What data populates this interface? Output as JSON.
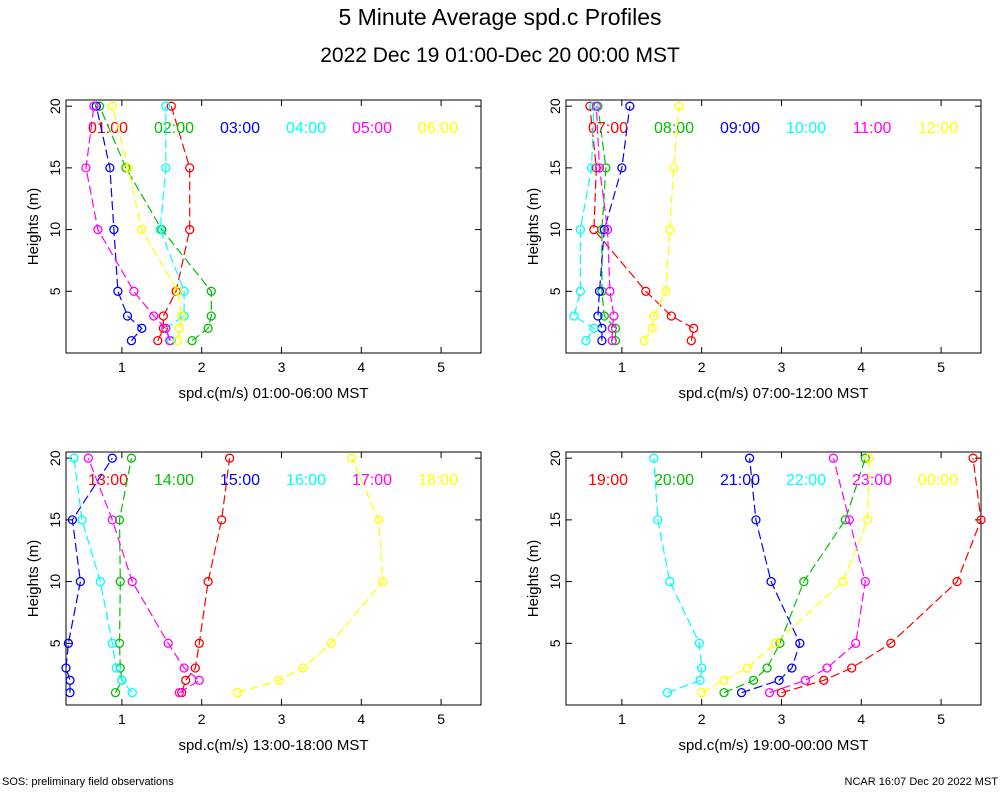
{
  "title": "5 Minute Average spd.c Profiles",
  "subtitle": "2022 Dec 19 01:00-Dec 20 00:00 MST",
  "footer_left": "SOS: preliminary field observations",
  "footer_right": "NCAR 16:07 Dec 20 2022 MST",
  "chart_data": [
    {
      "type": "line",
      "xlabel": "spd.c(m/s) 01:00-06:00 MST",
      "ylabel": "Heights (m)",
      "xlim": [
        0.3,
        5.5
      ],
      "ylim": [
        0,
        20.5
      ],
      "xticks": [
        1,
        2,
        3,
        4,
        5
      ],
      "yticks": [
        5,
        10,
        15,
        20
      ],
      "heights": [
        1,
        2,
        3,
        5,
        10,
        15,
        20
      ],
      "series": [
        {
          "name": "01:00",
          "color": "#ff0000",
          "values": [
            1.45,
            1.52,
            1.52,
            1.68,
            1.85,
            1.85,
            1.62
          ]
        },
        {
          "name": "02:00",
          "color": "#00c000",
          "values": [
            1.88,
            2.08,
            2.12,
            2.12,
            1.5,
            1.05,
            0.72
          ]
        },
        {
          "name": "03:00",
          "color": "#0000ff",
          "values": [
            1.12,
            1.25,
            1.07,
            0.95,
            0.9,
            0.85,
            0.68
          ]
        },
        {
          "name": "04:00",
          "color": "#00ffff",
          "values": [
            1.62,
            1.55,
            1.78,
            1.78,
            1.48,
            1.55,
            1.55
          ]
        },
        {
          "name": "05:00",
          "color": "#ff00ff",
          "values": [
            1.6,
            1.55,
            1.4,
            1.15,
            0.7,
            0.55,
            0.65
          ]
        },
        {
          "name": "06:00",
          "color": "#ffff00",
          "values": [
            1.7,
            1.72,
            1.75,
            1.7,
            1.25,
            1.08,
            0.88
          ]
        }
      ]
    },
    {
      "type": "line",
      "xlabel": "spd.c(m/s) 07:00-12:00 MST",
      "ylabel": "Heights (m)",
      "xlim": [
        0.3,
        5.5
      ],
      "ylim": [
        0,
        20.5
      ],
      "xticks": [
        1,
        2,
        3,
        4,
        5
      ],
      "yticks": [
        5,
        10,
        15,
        20
      ],
      "heights": [
        1,
        2,
        3,
        5,
        10,
        15,
        20
      ],
      "series": [
        {
          "name": "07:00",
          "color": "#ff0000",
          "values": [
            1.87,
            1.9,
            1.62,
            1.3,
            0.65,
            0.68,
            0.6
          ]
        },
        {
          "name": "08:00",
          "color": "#00c000",
          "values": [
            0.92,
            0.92,
            0.78,
            0.75,
            0.75,
            0.8,
            0.7
          ]
        },
        {
          "name": "09:00",
          "color": "#0000ff",
          "values": [
            0.75,
            0.75,
            0.7,
            0.72,
            0.78,
            1.0,
            1.1
          ]
        },
        {
          "name": "10:00",
          "color": "#00ffff",
          "values": [
            0.55,
            0.65,
            0.4,
            0.48,
            0.48,
            0.62,
            0.65
          ]
        },
        {
          "name": "11:00",
          "color": "#ff00ff",
          "values": [
            0.88,
            0.88,
            0.9,
            0.85,
            0.82,
            0.72,
            0.68
          ]
        },
        {
          "name": "12:00",
          "color": "#ffff00",
          "values": [
            1.28,
            1.38,
            1.4,
            1.55,
            1.6,
            1.65,
            1.72
          ]
        }
      ]
    },
    {
      "type": "line",
      "xlabel": "spd.c(m/s) 13:00-18:00 MST",
      "ylabel": "Heights (m)",
      "xlim": [
        0.3,
        5.5
      ],
      "ylim": [
        0,
        20.5
      ],
      "xticks": [
        1,
        2,
        3,
        4,
        5
      ],
      "yticks": [
        5,
        10,
        15,
        20
      ],
      "heights": [
        1,
        2,
        3,
        5,
        10,
        15,
        20
      ],
      "series": [
        {
          "name": "13:00",
          "color": "#ff0000",
          "values": [
            1.75,
            1.8,
            1.92,
            1.97,
            2.08,
            2.25,
            2.35
          ]
        },
        {
          "name": "14:00",
          "color": "#00c000",
          "values": [
            0.92,
            1.0,
            0.98,
            0.97,
            0.98,
            0.97,
            1.12
          ]
        },
        {
          "name": "15:00",
          "color": "#0000ff",
          "values": [
            0.35,
            0.35,
            0.3,
            0.33,
            0.48,
            0.38,
            0.88
          ]
        },
        {
          "name": "16:00",
          "color": "#00ffff",
          "values": [
            1.13,
            1.0,
            0.93,
            0.88,
            0.73,
            0.5,
            0.4
          ]
        },
        {
          "name": "17:00",
          "color": "#ff00ff",
          "values": [
            1.72,
            1.97,
            1.78,
            1.58,
            1.13,
            0.88,
            0.58
          ]
        },
        {
          "name": "18:00",
          "color": "#ffff00",
          "values": [
            2.45,
            2.97,
            3.27,
            3.62,
            4.27,
            4.22,
            3.88
          ]
        }
      ]
    },
    {
      "type": "line",
      "xlabel": "spd.c(m/s) 19:00-00:00 MST",
      "ylabel": "Heights (m)",
      "xlim": [
        0.3,
        5.5
      ],
      "ylim": [
        0,
        20.5
      ],
      "xticks": [
        1,
        2,
        3,
        4,
        5
      ],
      "yticks": [
        5,
        10,
        15,
        20
      ],
      "heights": [
        1,
        2,
        3,
        5,
        10,
        15,
        20
      ],
      "series": [
        {
          "name": "19:00",
          "color": "#ff0000",
          "values": [
            3.0,
            3.53,
            3.88,
            4.37,
            5.2,
            5.5,
            5.4
          ]
        },
        {
          "name": "20:00",
          "color": "#00c000",
          "values": [
            2.28,
            2.65,
            2.82,
            2.98,
            3.28,
            3.8,
            4.05
          ]
        },
        {
          "name": "21:00",
          "color": "#0000ff",
          "values": [
            2.5,
            2.97,
            3.13,
            3.23,
            2.87,
            2.68,
            2.6
          ]
        },
        {
          "name": "22:00",
          "color": "#00ffff",
          "values": [
            1.57,
            1.98,
            2.0,
            1.97,
            1.6,
            1.45,
            1.4
          ]
        },
        {
          "name": "23:00",
          "color": "#ff00ff",
          "values": [
            2.85,
            3.3,
            3.57,
            3.93,
            4.05,
            3.85,
            3.65
          ]
        },
        {
          "name": "00:00",
          "color": "#ffff00",
          "values": [
            2.0,
            2.28,
            2.57,
            2.92,
            3.77,
            4.08,
            4.1
          ]
        }
      ]
    }
  ]
}
